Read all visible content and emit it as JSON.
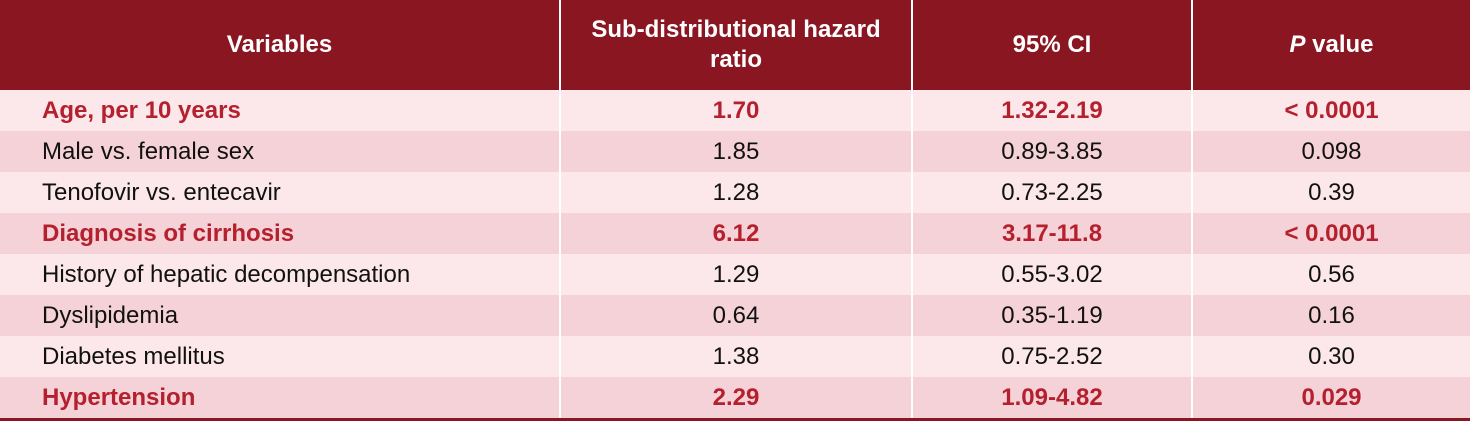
{
  "table": {
    "header": [
      "Variables",
      "Sub-distributional hazard ratio",
      "95% CI",
      {
        "italic": "P",
        "text": "value"
      }
    ],
    "rows": [
      {
        "cells": [
          "Age, per 10 years",
          "1.70",
          "1.32-2.19",
          "< 0.0001"
        ],
        "highlight": true
      },
      {
        "cells": [
          "Male vs. female sex",
          "1.85",
          "0.89-3.85",
          "0.098"
        ],
        "highlight": false
      },
      {
        "cells": [
          "Tenofovir vs. entecavir",
          "1.28",
          "0.73-2.25",
          "0.39"
        ],
        "highlight": false
      },
      {
        "cells": [
          "Diagnosis of cirrhosis",
          "6.12",
          "3.17-11.8",
          "< 0.0001"
        ],
        "highlight": true
      },
      {
        "cells": [
          "History of hepatic decompensation",
          "1.29",
          "0.55-3.02",
          "0.56"
        ],
        "highlight": false
      },
      {
        "cells": [
          "Dyslipidemia",
          "0.64",
          "0.35-1.19",
          "0.16"
        ],
        "highlight": false
      },
      {
        "cells": [
          "Diabetes mellitus",
          "1.38",
          "0.75-2.52",
          "0.30"
        ],
        "highlight": false
      },
      {
        "cells": [
          "Hypertension",
          "2.29",
          "1.09-4.82",
          "0.029"
        ],
        "highlight": true
      }
    ]
  }
}
